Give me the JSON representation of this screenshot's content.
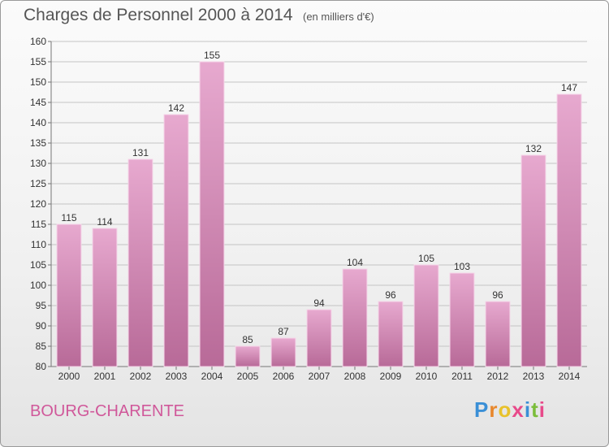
{
  "title": "Charges de Personnel 2000 à 2014",
  "subtitle": "(en milliers d'€)",
  "commune": "BOURG-CHARENTE",
  "logo": {
    "text": "Proxiti",
    "letter_colors": [
      "#3a8fd6",
      "#e8872b",
      "#e8c22b",
      "#e84a8a",
      "#3a8fd6",
      "#7bbd3a",
      "#e84a8a"
    ]
  },
  "colors": {
    "bar_top": "#e7a9cf",
    "bar_bottom": "#b86a98",
    "bar_edge": "#f5d4e8",
    "grid": "#c4c4c4",
    "title": "#555555",
    "commune": "#d0589a"
  },
  "chart_data": {
    "type": "bar",
    "title": "Charges de Personnel 2000 à 2014",
    "subtitle": "(en milliers d'€)",
    "categories": [
      "2000",
      "2001",
      "2002",
      "2003",
      "2004",
      "2005",
      "2006",
      "2007",
      "2008",
      "2009",
      "2010",
      "2011",
      "2012",
      "2013",
      "2014"
    ],
    "values": [
      115,
      114,
      131,
      142,
      155,
      85,
      87,
      94,
      104,
      96,
      105,
      103,
      96,
      132,
      147
    ],
    "xlabel": "",
    "ylabel": "",
    "ylim": [
      80,
      160
    ],
    "yticks": [
      80,
      85,
      90,
      95,
      100,
      105,
      110,
      115,
      120,
      125,
      130,
      135,
      140,
      145,
      150,
      155,
      160
    ],
    "grid": true,
    "data_labels": true
  }
}
